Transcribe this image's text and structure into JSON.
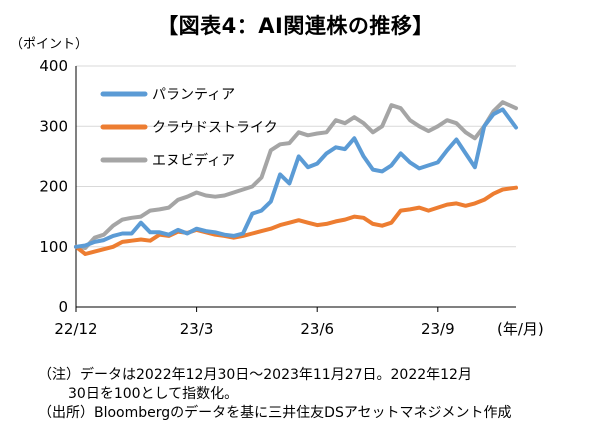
{
  "title": "【図表4：AI関連株の推移】",
  "y_unit": "（ポイント）",
  "x_unit": "(年/月)",
  "notes": [
    "（注）データは2022年12月30日～2023年11月27日。2022年12月",
    "30日を100として指数化。",
    "（出所）Bloombergのデータを基に三井住友DSアセットマネジメント作成"
  ],
  "chart_data": {
    "type": "line",
    "title": "【図表4：AI関連株の推移】",
    "ylabel": "（ポイント）",
    "xlabel": "(年/月)",
    "ylim": [
      0,
      400
    ],
    "yticks": [
      0,
      100,
      200,
      300,
      400
    ],
    "xlim": [
      "2022-12-30",
      "2023-11-27"
    ],
    "xticks": [
      {
        "date": "2022-12-30",
        "label": "22/12"
      },
      {
        "date": "2023-03-31",
        "label": "23/3"
      },
      {
        "date": "2023-06-30",
        "label": "23/6"
      },
      {
        "date": "2023-09-29",
        "label": "23/9"
      }
    ],
    "grid": "y-major",
    "legend": "top-left",
    "series": [
      {
        "name": "パランティア",
        "color": "#5B9BD5",
        "points": [
          [
            "2022-12-30",
            100
          ],
          [
            "2023-01-06",
            102
          ],
          [
            "2023-01-13",
            108
          ],
          [
            "2023-01-20",
            111
          ],
          [
            "2023-01-27",
            118
          ],
          [
            "2023-02-03",
            122
          ],
          [
            "2023-02-10",
            122
          ],
          [
            "2023-02-17",
            140
          ],
          [
            "2023-02-24",
            124
          ],
          [
            "2023-03-03",
            124
          ],
          [
            "2023-03-10",
            120
          ],
          [
            "2023-03-17",
            128
          ],
          [
            "2023-03-24",
            122
          ],
          [
            "2023-03-31",
            130
          ],
          [
            "2023-04-07",
            126
          ],
          [
            "2023-04-14",
            124
          ],
          [
            "2023-04-21",
            120
          ],
          [
            "2023-04-28",
            118
          ],
          [
            "2023-05-05",
            122
          ],
          [
            "2023-05-12",
            155
          ],
          [
            "2023-05-19",
            160
          ],
          [
            "2023-05-26",
            175
          ],
          [
            "2023-06-02",
            220
          ],
          [
            "2023-06-09",
            205
          ],
          [
            "2023-06-16",
            250
          ],
          [
            "2023-06-23",
            232
          ],
          [
            "2023-06-30",
            238
          ],
          [
            "2023-07-07",
            255
          ],
          [
            "2023-07-14",
            265
          ],
          [
            "2023-07-21",
            262
          ],
          [
            "2023-07-28",
            280
          ],
          [
            "2023-08-04",
            250
          ],
          [
            "2023-08-11",
            228
          ],
          [
            "2023-08-18",
            225
          ],
          [
            "2023-08-25",
            235
          ],
          [
            "2023-09-01",
            255
          ],
          [
            "2023-09-08",
            240
          ],
          [
            "2023-09-15",
            230
          ],
          [
            "2023-09-22",
            235
          ],
          [
            "2023-09-29",
            240
          ],
          [
            "2023-10-06",
            260
          ],
          [
            "2023-10-13",
            278
          ],
          [
            "2023-10-20",
            255
          ],
          [
            "2023-10-27",
            232
          ],
          [
            "2023-11-03",
            300
          ],
          [
            "2023-11-10",
            320
          ],
          [
            "2023-11-17",
            328
          ],
          [
            "2023-11-27",
            298
          ]
        ]
      },
      {
        "name": "クラウドストライク",
        "color": "#ED7D31",
        "points": [
          [
            "2022-12-30",
            100
          ],
          [
            "2023-01-06",
            88
          ],
          [
            "2023-01-13",
            92
          ],
          [
            "2023-01-20",
            96
          ],
          [
            "2023-01-27",
            100
          ],
          [
            "2023-02-03",
            108
          ],
          [
            "2023-02-10",
            110
          ],
          [
            "2023-02-17",
            112
          ],
          [
            "2023-02-24",
            110
          ],
          [
            "2023-03-03",
            120
          ],
          [
            "2023-03-10",
            118
          ],
          [
            "2023-03-17",
            125
          ],
          [
            "2023-03-24",
            123
          ],
          [
            "2023-03-31",
            128
          ],
          [
            "2023-04-07",
            124
          ],
          [
            "2023-04-14",
            120
          ],
          [
            "2023-04-21",
            118
          ],
          [
            "2023-04-28",
            115
          ],
          [
            "2023-05-05",
            118
          ],
          [
            "2023-05-12",
            122
          ],
          [
            "2023-05-19",
            126
          ],
          [
            "2023-05-26",
            130
          ],
          [
            "2023-06-02",
            136
          ],
          [
            "2023-06-09",
            140
          ],
          [
            "2023-06-16",
            144
          ],
          [
            "2023-06-23",
            140
          ],
          [
            "2023-06-30",
            136
          ],
          [
            "2023-07-07",
            138
          ],
          [
            "2023-07-14",
            142
          ],
          [
            "2023-07-21",
            145
          ],
          [
            "2023-07-28",
            150
          ],
          [
            "2023-08-04",
            148
          ],
          [
            "2023-08-11",
            138
          ],
          [
            "2023-08-18",
            135
          ],
          [
            "2023-08-25",
            140
          ],
          [
            "2023-09-01",
            160
          ],
          [
            "2023-09-08",
            162
          ],
          [
            "2023-09-15",
            165
          ],
          [
            "2023-09-22",
            160
          ],
          [
            "2023-09-29",
            165
          ],
          [
            "2023-10-06",
            170
          ],
          [
            "2023-10-13",
            172
          ],
          [
            "2023-10-20",
            168
          ],
          [
            "2023-10-27",
            172
          ],
          [
            "2023-11-03",
            178
          ],
          [
            "2023-11-10",
            188
          ],
          [
            "2023-11-17",
            195
          ],
          [
            "2023-11-27",
            198
          ]
        ]
      },
      {
        "name": "エヌビディア",
        "color": "#A5A5A5",
        "points": [
          [
            "2022-12-30",
            100
          ],
          [
            "2023-01-06",
            98
          ],
          [
            "2023-01-13",
            115
          ],
          [
            "2023-01-20",
            120
          ],
          [
            "2023-01-27",
            135
          ],
          [
            "2023-02-03",
            145
          ],
          [
            "2023-02-10",
            148
          ],
          [
            "2023-02-17",
            150
          ],
          [
            "2023-02-24",
            160
          ],
          [
            "2023-03-03",
            162
          ],
          [
            "2023-03-10",
            165
          ],
          [
            "2023-03-17",
            178
          ],
          [
            "2023-03-24",
            183
          ],
          [
            "2023-03-31",
            190
          ],
          [
            "2023-04-07",
            185
          ],
          [
            "2023-04-14",
            183
          ],
          [
            "2023-04-21",
            185
          ],
          [
            "2023-04-28",
            190
          ],
          [
            "2023-05-05",
            195
          ],
          [
            "2023-05-12",
            200
          ],
          [
            "2023-05-19",
            215
          ],
          [
            "2023-05-26",
            260
          ],
          [
            "2023-06-02",
            270
          ],
          [
            "2023-06-09",
            272
          ],
          [
            "2023-06-16",
            290
          ],
          [
            "2023-06-23",
            285
          ],
          [
            "2023-06-30",
            288
          ],
          [
            "2023-07-07",
            290
          ],
          [
            "2023-07-14",
            310
          ],
          [
            "2023-07-21",
            305
          ],
          [
            "2023-07-28",
            315
          ],
          [
            "2023-08-04",
            305
          ],
          [
            "2023-08-11",
            290
          ],
          [
            "2023-08-18",
            300
          ],
          [
            "2023-08-25",
            335
          ],
          [
            "2023-09-01",
            330
          ],
          [
            "2023-09-08",
            310
          ],
          [
            "2023-09-15",
            300
          ],
          [
            "2023-09-22",
            292
          ],
          [
            "2023-09-29",
            300
          ],
          [
            "2023-10-06",
            310
          ],
          [
            "2023-10-13",
            305
          ],
          [
            "2023-10-20",
            290
          ],
          [
            "2023-10-27",
            280
          ],
          [
            "2023-11-03",
            300
          ],
          [
            "2023-11-10",
            325
          ],
          [
            "2023-11-17",
            340
          ],
          [
            "2023-11-27",
            330
          ]
        ]
      }
    ]
  }
}
